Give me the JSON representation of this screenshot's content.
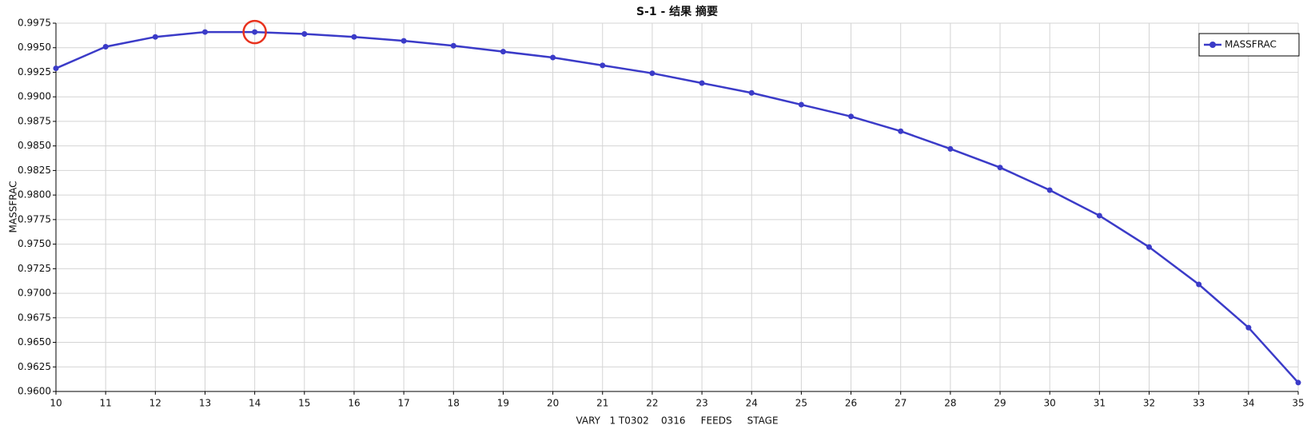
{
  "chart_data": {
    "type": "line",
    "title": "S-1 - 结果 摘要",
    "x_label": "VARY   1 T0302    0316     FEEDS     STAGE",
    "y_label": "MASSFRAC",
    "x": [
      10,
      11,
      12,
      13,
      14,
      15,
      16,
      17,
      18,
      19,
      20,
      21,
      22,
      23,
      24,
      25,
      26,
      27,
      28,
      29,
      30,
      31,
      32,
      33,
      34,
      35
    ],
    "series": [
      {
        "name": "MASSFRAC",
        "color": "#3b3bc8",
        "values": [
          0.9929,
          0.9951,
          0.9961,
          0.9966,
          0.9966,
          0.9964,
          0.9961,
          0.9957,
          0.9952,
          0.9946,
          0.994,
          0.9932,
          0.9924,
          0.9914,
          0.9904,
          0.9892,
          0.988,
          0.9865,
          0.9847,
          0.9828,
          0.9805,
          0.9779,
          0.9747,
          0.9709,
          0.9665,
          0.9609
        ]
      }
    ],
    "xlim": [
      10,
      35
    ],
    "xticks": [
      10,
      11,
      12,
      13,
      14,
      15,
      16,
      17,
      18,
      19,
      20,
      21,
      22,
      23,
      24,
      25,
      26,
      27,
      28,
      29,
      30,
      31,
      32,
      33,
      34,
      35
    ],
    "ylim": [
      0.96,
      0.9975
    ],
    "yticks": [
      {
        "value": 0.96,
        "label": "0.9600"
      },
      {
        "value": 0.9625,
        "label": "0.9625"
      },
      {
        "value": 0.965,
        "label": "0.9650"
      },
      {
        "value": 0.9675,
        "label": "0.9675"
      },
      {
        "value": 0.97,
        "label": "0.9700"
      },
      {
        "value": 0.9725,
        "label": "0.9725"
      },
      {
        "value": 0.975,
        "label": "0.9750"
      },
      {
        "value": 0.9775,
        "label": "0.9775"
      },
      {
        "value": 0.98,
        "label": "0.9800"
      },
      {
        "value": 0.9825,
        "label": "0.9825"
      },
      {
        "value": 0.985,
        "label": "0.9850"
      },
      {
        "value": 0.9875,
        "label": "0.9875"
      },
      {
        "value": 0.99,
        "label": "0.9900"
      },
      {
        "value": 0.9925,
        "label": "0.9925"
      },
      {
        "value": 0.995,
        "label": "0.9950"
      },
      {
        "value": 0.9975,
        "label": "0.9975"
      }
    ],
    "grid": true,
    "legend": "top-right"
  }
}
